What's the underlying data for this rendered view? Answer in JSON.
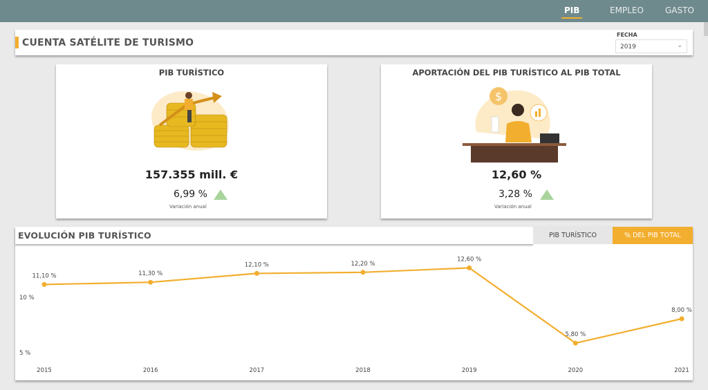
{
  "nav": {
    "items": [
      "PIB",
      "EMPLEO",
      "GASTO"
    ],
    "active": "PIB"
  },
  "header": {
    "title": "CUENTA SATÉLITE DE TURISMO",
    "fecha_label": "FECHA",
    "fecha_value": "2019"
  },
  "card_pib": {
    "title": "PIB TURÍSTICO",
    "value": "157.355 mill. €",
    "variation": "6,99 %",
    "variation_label": "Variación anual",
    "trend": "up"
  },
  "card_aport": {
    "title": "APORTACIÓN DEL PIB TURÍSTICO AL PIB TOTAL",
    "value": "12,60 %",
    "variation": "3,28 %",
    "variation_label": "Variación anual",
    "trend": "up"
  },
  "evolution": {
    "title": "EVOLUCIÓN PIB TURÍSTICO",
    "toggle": [
      "PIB TURÍSTICO",
      "% DEL PIB TOTAL"
    ],
    "active_toggle": "% DEL PIB TOTAL"
  },
  "colors": {
    "accent": "#f2ae2e",
    "topbar": "#6f8a8c",
    "up": "#a8d49c"
  },
  "chart_data": {
    "type": "line",
    "categories": [
      "2015",
      "2016",
      "2017",
      "2018",
      "2019",
      "2020",
      "2021"
    ],
    "values": [
      11.1,
      11.3,
      12.1,
      12.2,
      12.6,
      5.8,
      8.0
    ],
    "labels": [
      "11,10 %",
      "11,30 %",
      "12,10 %",
      "12,20 %",
      "12,60 %",
      "5,80 %",
      "8,00 %"
    ],
    "yticks": [
      {
        "v": 5,
        "label": "5 %"
      },
      {
        "v": 10,
        "label": "10 %"
      }
    ],
    "grid": false
  }
}
